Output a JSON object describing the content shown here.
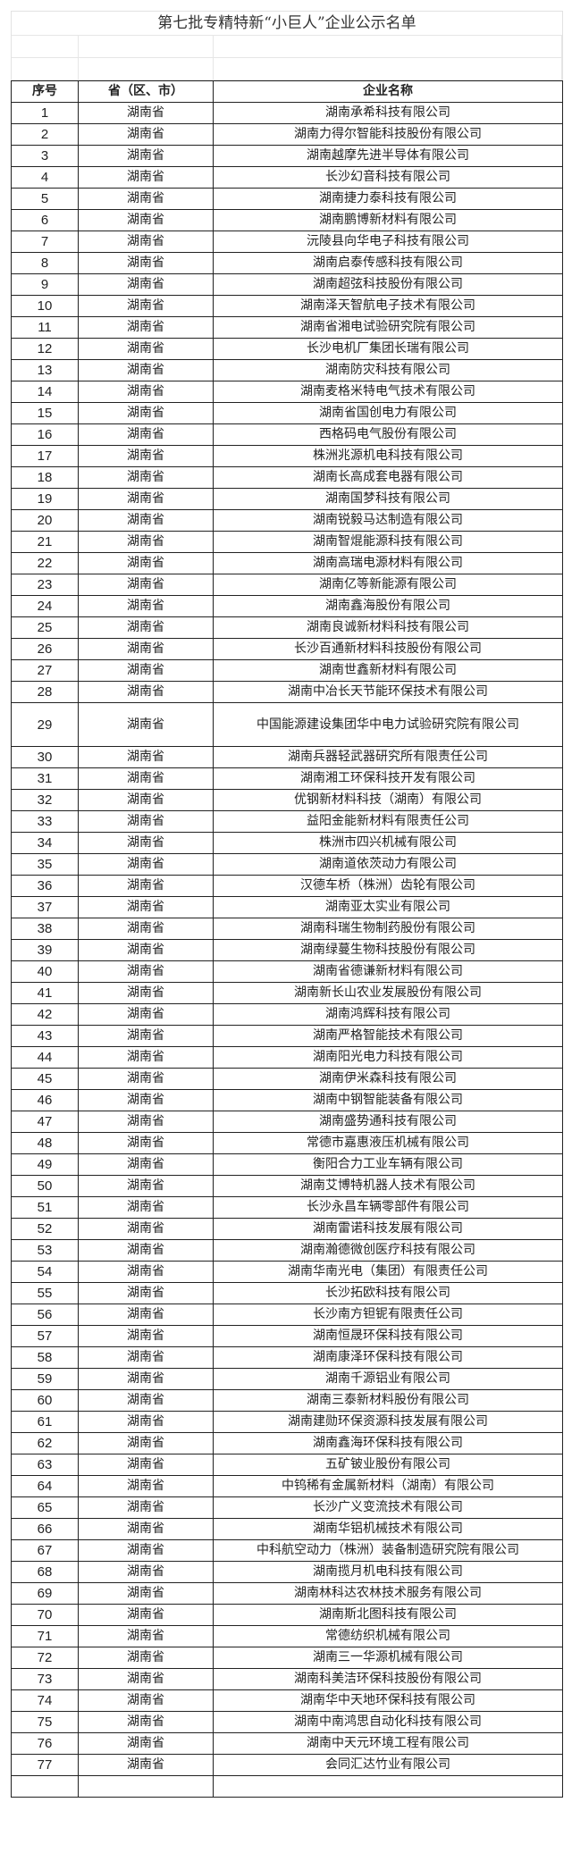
{
  "title": "第七批专精特新“小巨人”企业公示名单",
  "headers": [
    "序号",
    "省（区、市）",
    "企业名称"
  ],
  "rows": [
    [
      "1",
      "湖南省",
      "湖南承希科技有限公司"
    ],
    [
      "2",
      "湖南省",
      "湖南力得尔智能科技股份有限公司"
    ],
    [
      "3",
      "湖南省",
      "湖南越摩先进半导体有限公司"
    ],
    [
      "4",
      "湖南省",
      "长沙幻音科技有限公司"
    ],
    [
      "5",
      "湖南省",
      "湖南捷力泰科技有限公司"
    ],
    [
      "6",
      "湖南省",
      "湖南鹏博新材料有限公司"
    ],
    [
      "7",
      "湖南省",
      "沅陵县向华电子科技有限公司"
    ],
    [
      "8",
      "湖南省",
      "湖南启泰传感科技有限公司"
    ],
    [
      "9",
      "湖南省",
      "湖南超弦科技股份有限公司"
    ],
    [
      "10",
      "湖南省",
      "湖南泽天智航电子技术有限公司"
    ],
    [
      "11",
      "湖南省",
      "湖南省湘电试验研究院有限公司"
    ],
    [
      "12",
      "湖南省",
      "长沙电机厂集团长瑞有限公司"
    ],
    [
      "13",
      "湖南省",
      "湖南防灾科技有限公司"
    ],
    [
      "14",
      "湖南省",
      "湖南麦格米特电气技术有限公司"
    ],
    [
      "15",
      "湖南省",
      "湖南省国创电力有限公司"
    ],
    [
      "16",
      "湖南省",
      "西格码电气股份有限公司"
    ],
    [
      "17",
      "湖南省",
      "株洲兆源机电科技有限公司"
    ],
    [
      "18",
      "湖南省",
      "湖南长高成套电器有限公司"
    ],
    [
      "19",
      "湖南省",
      "湖南国梦科技有限公司"
    ],
    [
      "20",
      "湖南省",
      "湖南锐毅马达制造有限公司"
    ],
    [
      "21",
      "湖南省",
      "湖南智焜能源科技有限公司"
    ],
    [
      "22",
      "湖南省",
      "湖南高瑞电源材料有限公司"
    ],
    [
      "23",
      "湖南省",
      "湖南亿等新能源有限公司"
    ],
    [
      "24",
      "湖南省",
      "湖南鑫海股份有限公司"
    ],
    [
      "25",
      "湖南省",
      "湖南良诚新材料科技有限公司"
    ],
    [
      "26",
      "湖南省",
      "长沙百通新材料科技股份有限公司"
    ],
    [
      "27",
      "湖南省",
      "湖南世鑫新材料有限公司"
    ],
    [
      "28",
      "湖南省",
      "湖南中冶长天节能环保技术有限公司"
    ],
    [
      "29",
      "湖南省",
      "中国能源建设集团华中电力试验研究院有限公司"
    ],
    [
      "30",
      "湖南省",
      "湖南兵器轻武器研究所有限责任公司"
    ],
    [
      "31",
      "湖南省",
      "湖南湘工环保科技开发有限公司"
    ],
    [
      "32",
      "湖南省",
      "优钢新材料科技（湖南）有限公司"
    ],
    [
      "33",
      "湖南省",
      "益阳金能新材料有限责任公司"
    ],
    [
      "34",
      "湖南省",
      "株洲市四兴机械有限公司"
    ],
    [
      "35",
      "湖南省",
      "湖南道依茨动力有限公司"
    ],
    [
      "36",
      "湖南省",
      "汉德车桥（株洲）齿轮有限公司"
    ],
    [
      "37",
      "湖南省",
      "湖南亚太实业有限公司"
    ],
    [
      "38",
      "湖南省",
      "湖南科瑞生物制药股份有限公司"
    ],
    [
      "39",
      "湖南省",
      "湖南绿蔓生物科技股份有限公司"
    ],
    [
      "40",
      "湖南省",
      "湖南省德谦新材料有限公司"
    ],
    [
      "41",
      "湖南省",
      "湖南新长山农业发展股份有限公司"
    ],
    [
      "42",
      "湖南省",
      "湖南鸿辉科技有限公司"
    ],
    [
      "43",
      "湖南省",
      "湖南严格智能技术有限公司"
    ],
    [
      "44",
      "湖南省",
      "湖南阳光电力科技有限公司"
    ],
    [
      "45",
      "湖南省",
      "湖南伊米森科技有限公司"
    ],
    [
      "46",
      "湖南省",
      "湖南中钢智能装备有限公司"
    ],
    [
      "47",
      "湖南省",
      "湖南盛势通科技有限公司"
    ],
    [
      "48",
      "湖南省",
      "常德市嘉惠液压机械有限公司"
    ],
    [
      "49",
      "湖南省",
      "衡阳合力工业车辆有限公司"
    ],
    [
      "50",
      "湖南省",
      "湖南艾博特机器人技术有限公司"
    ],
    [
      "51",
      "湖南省",
      "长沙永昌车辆零部件有限公司"
    ],
    [
      "52",
      "湖南省",
      "湖南雷诺科技发展有限公司"
    ],
    [
      "53",
      "湖南省",
      "湖南瀚德微创医疗科技有限公司"
    ],
    [
      "54",
      "湖南省",
      "湖南华南光电（集团）有限责任公司"
    ],
    [
      "55",
      "湖南省",
      "长沙拓欧科技有限公司"
    ],
    [
      "56",
      "湖南省",
      "长沙南方钽铌有限责任公司"
    ],
    [
      "57",
      "湖南省",
      "湖南恒晟环保科技有限公司"
    ],
    [
      "58",
      "湖南省",
      "湖南康泽环保科技有限公司"
    ],
    [
      "59",
      "湖南省",
      "湖南千源铝业有限公司"
    ],
    [
      "60",
      "湖南省",
      "湖南三泰新材料股份有限公司"
    ],
    [
      "61",
      "湖南省",
      "湖南建勋环保资源科技发展有限公司"
    ],
    [
      "62",
      "湖南省",
      "湖南鑫海环保科技有限公司"
    ],
    [
      "63",
      "湖南省",
      "五矿铍业股份有限公司"
    ],
    [
      "64",
      "湖南省",
      "中钨稀有金属新材料（湖南）有限公司"
    ],
    [
      "65",
      "湖南省",
      "长沙广义变流技术有限公司"
    ],
    [
      "66",
      "湖南省",
      "湖南华铝机械技术有限公司"
    ],
    [
      "67",
      "湖南省",
      "中科航空动力（株洲）装备制造研究院有限公司"
    ],
    [
      "68",
      "湖南省",
      "湖南揽月机电科技有限公司"
    ],
    [
      "69",
      "湖南省",
      "湖南林科达农林技术服务有限公司"
    ],
    [
      "70",
      "湖南省",
      "湖南斯北图科技有限公司"
    ],
    [
      "71",
      "湖南省",
      "常德纺织机械有限公司"
    ],
    [
      "72",
      "湖南省",
      "湖南三一华源机械有限公司"
    ],
    [
      "73",
      "湖南省",
      "湖南科美洁环保科技股份有限公司"
    ],
    [
      "74",
      "湖南省",
      "湖南华中天地环保科技有限公司"
    ],
    [
      "75",
      "湖南省",
      "湖南中南鸿思自动化科技有限公司"
    ],
    [
      "76",
      "湖南省",
      "湖南中天元环境工程有限公司"
    ],
    [
      "77",
      "湖南省",
      "会同汇达竹业有限公司"
    ]
  ]
}
